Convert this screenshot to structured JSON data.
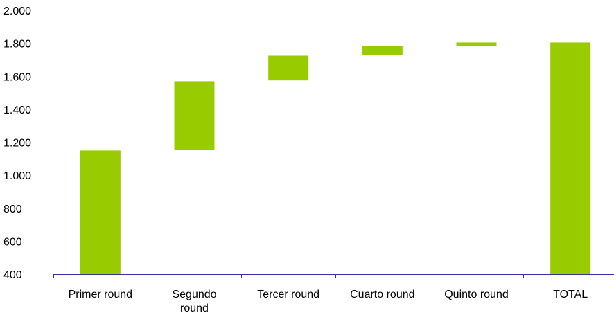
{
  "chart_data": {
    "type": "bar",
    "subtype": "waterfall",
    "title": "",
    "xlabel": "",
    "ylabel": "",
    "ylim": [
      400,
      2000
    ],
    "yticks": [
      400,
      600,
      800,
      1000,
      1200,
      1400,
      1600,
      1800,
      2000
    ],
    "ytick_labels": [
      "400",
      "600",
      "800",
      "1.000",
      "1.200",
      "1.400",
      "1.600",
      "1.800",
      "2.000"
    ],
    "categories": [
      [
        "Primer round"
      ],
      [
        "Segundo",
        "round"
      ],
      [
        "Tercer round"
      ],
      [
        "Cuarto round"
      ],
      [
        "Quinto round"
      ],
      [
        "TOTAL"
      ]
    ],
    "bars": [
      {
        "start": 400,
        "end": 1150
      },
      {
        "start": 1155,
        "end": 1570
      },
      {
        "start": 1575,
        "end": 1725
      },
      {
        "start": 1730,
        "end": 1785
      },
      {
        "start": 1785,
        "end": 1805
      },
      {
        "start": 400,
        "end": 1805
      }
    ],
    "bar_color": "#99cc00",
    "axis_color": "#333399",
    "grid": false,
    "legend": "none"
  }
}
